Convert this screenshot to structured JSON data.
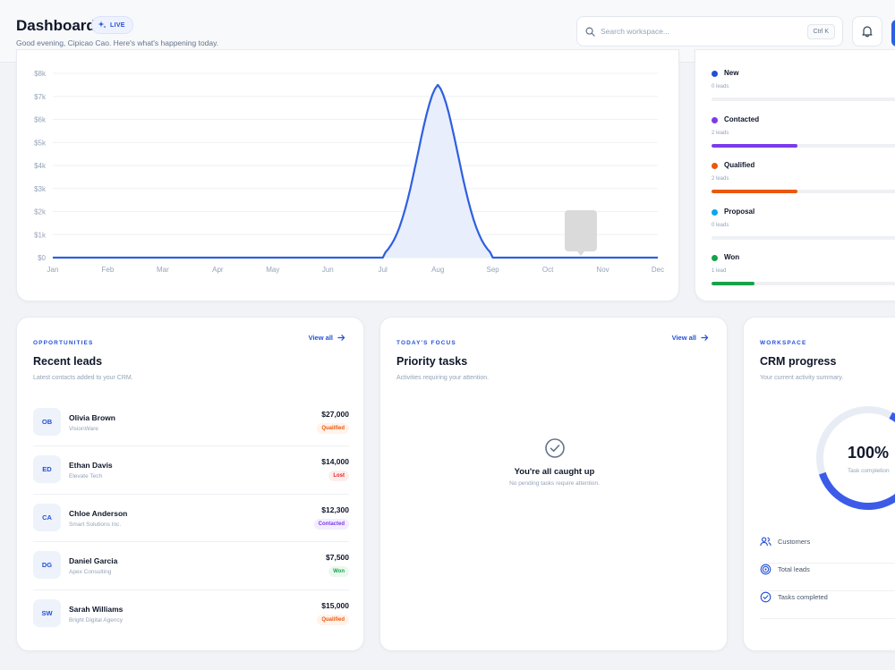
{
  "header": {
    "title": "Dashboard",
    "live_label": "LIVE",
    "subtitle": "Good evening, Cipicao Cao. Here's what's happening today.",
    "search_placeholder": "Search workspace...",
    "search_shortcut": "Ctrl K",
    "bell_icon": "bell-icon"
  },
  "chart_data": {
    "type": "area",
    "categories": [
      "Jan",
      "Feb",
      "Mar",
      "Apr",
      "May",
      "Jun",
      "Jul",
      "Aug",
      "Sep",
      "Oct",
      "Nov",
      "Dec"
    ],
    "series": [
      {
        "values": [
          0,
          0,
          0,
          0,
          0,
          0,
          0,
          7500,
          0,
          0,
          0,
          0
        ]
      }
    ],
    "yticks": [
      "$0",
      "$1k",
      "$2k",
      "$3k",
      "$4k",
      "$5k",
      "$6k",
      "$7k",
      "$8k"
    ],
    "ylim": [
      0,
      8000
    ],
    "grid": true,
    "line_color": "#2f5fe0",
    "fill_color": "#e8eefb",
    "tooltip_color": "#d6d6d6"
  },
  "pipeline": {
    "stages": [
      {
        "name": "New",
        "count": "0 leads",
        "fraction": 0,
        "color": "#2350d6"
      },
      {
        "name": "Contacted",
        "count": "2 leads",
        "fraction": 0.4,
        "color": "#7c3aed"
      },
      {
        "name": "Qualified",
        "count": "2 leads",
        "fraction": 0.4,
        "color": "#ea580c"
      },
      {
        "name": "Proposal",
        "count": "0 leads",
        "fraction": 0,
        "color": "#0ea5e9"
      },
      {
        "name": "Won",
        "count": "1 lead",
        "fraction": 0.2,
        "color": "#16a34a"
      }
    ]
  },
  "leads": {
    "overline": "OPPORTUNITIES",
    "title": "Recent leads",
    "description": "Latest contacts added to your CRM.",
    "view_all": "View all",
    "items": [
      {
        "initials": "OB",
        "name": "Olivia Brown",
        "company": "VisionWare",
        "amount": "$27,000",
        "status": "Qualified",
        "status_color": "#ea580c",
        "status_bg": "#fff3eb"
      },
      {
        "initials": "ED",
        "name": "Ethan Davis",
        "company": "Elevate Tech",
        "amount": "$14,000",
        "status": "Lost",
        "status_color": "#dc2626",
        "status_bg": "#fdeeee"
      },
      {
        "initials": "CA",
        "name": "Chloe Anderson",
        "company": "Smart Solutions Inc.",
        "amount": "$12,300",
        "status": "Contacted",
        "status_color": "#7c3aed",
        "status_bg": "#f3eefe"
      },
      {
        "initials": "DG",
        "name": "Daniel Garcia",
        "company": "Apex Consulting",
        "amount": "$7,500",
        "status": "Won",
        "status_color": "#16a34a",
        "status_bg": "#ebf8ef"
      },
      {
        "initials": "SW",
        "name": "Sarah Williams",
        "company": "Bright Digital Agency",
        "amount": "$15,000",
        "status": "Qualified",
        "status_color": "#ea580c",
        "status_bg": "#fff3eb"
      }
    ]
  },
  "tasks": {
    "overline": "TODAY'S FOCUS",
    "title": "Priority tasks",
    "description": "Activities requiring your attention.",
    "view_all": "View all",
    "empty_title": "You're all caught up",
    "empty_desc": "No pending tasks require attention."
  },
  "progress": {
    "overline": "WORKSPACE",
    "title": "CRM progress",
    "description": "Your current activity summary.",
    "value": "100%",
    "caption": "Task completion",
    "completion_fraction": 1.0,
    "metrics": [
      {
        "label": "Customers",
        "icon": "users-icon"
      },
      {
        "label": "Total leads",
        "icon": "target-icon"
      },
      {
        "label": "Tasks completed",
        "icon": "check-circle-icon"
      }
    ]
  }
}
